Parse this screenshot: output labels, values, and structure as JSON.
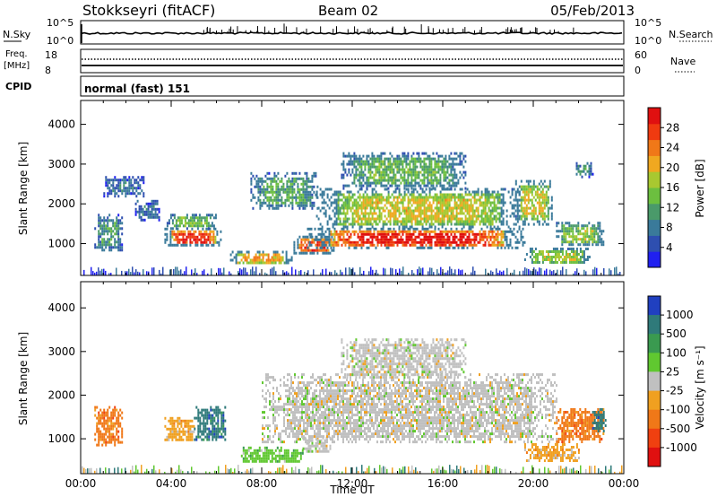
{
  "header": {
    "station": "Stokkseyri (fitACF)",
    "beam": "Beam 02",
    "date": "05/Feb/2013"
  },
  "noise_panel": {
    "left_label": "N.Sky",
    "left_ticks": [
      "10^5",
      "10^0"
    ],
    "right_ticks": [
      "10^5",
      "10^0"
    ],
    "right_label": "N.Search"
  },
  "freq_panel": {
    "left_label_1": "Freq.",
    "left_label_2": "[MHz]",
    "left_ticks": [
      "18",
      "8"
    ],
    "right_ticks": [
      "60",
      "0"
    ],
    "right_label": "Nave"
  },
  "cpid_panel": {
    "label": "CPID",
    "text": "normal (fast) 151"
  },
  "chart_data": [
    {
      "type": "heatmap",
      "quantity": "power",
      "ylabel": "Slant Range [km]",
      "y_ticks": [
        "4000",
        "3000",
        "2000",
        "1000"
      ],
      "ylim": [
        200,
        4600
      ],
      "x_hours": [
        0,
        24
      ],
      "colorbar": {
        "label": "Power [dB]",
        "ticks": [
          "28",
          "24",
          "20",
          "16",
          "12",
          "8",
          "4"
        ],
        "range": [
          0,
          32
        ],
        "colors": [
          "#2020f0",
          "#2e4fb0",
          "#3a7a9a",
          "#4a9a6a",
          "#6cbf3f",
          "#a8c830",
          "#f0a820",
          "#f07818",
          "#f03a10",
          "#e01010"
        ]
      },
      "regions": [
        {
          "t0": 0.6,
          "t1": 1.8,
          "r0": 850,
          "r1": 1750,
          "level": 0.3
        },
        {
          "t0": 1.0,
          "t1": 2.8,
          "r0": 2200,
          "r1": 2700,
          "level": 0.2
        },
        {
          "t0": 2.4,
          "t1": 3.5,
          "r0": 1600,
          "r1": 2100,
          "level": 0.2
        },
        {
          "t0": 3.7,
          "t1": 6.2,
          "r0": 950,
          "r1": 1400,
          "level": 0.95
        },
        {
          "t0": 3.8,
          "t1": 6.0,
          "r0": 1400,
          "r1": 1750,
          "level": 0.45
        },
        {
          "t0": 6.6,
          "t1": 9.3,
          "r0": 500,
          "r1": 820,
          "level": 0.7
        },
        {
          "t0": 7.5,
          "t1": 10.5,
          "r0": 1900,
          "r1": 2800,
          "level": 0.35
        },
        {
          "t0": 9.4,
          "t1": 11.2,
          "r0": 750,
          "r1": 1200,
          "level": 0.9
        },
        {
          "t0": 10.0,
          "t1": 19.6,
          "r0": 900,
          "r1": 1400,
          "level": 1.0
        },
        {
          "t0": 10.4,
          "t1": 19.4,
          "r0": 1400,
          "r1": 2400,
          "level": 0.6
        },
        {
          "t0": 11.5,
          "t1": 17.0,
          "r0": 2400,
          "r1": 3300,
          "level": 0.4
        },
        {
          "t0": 19.2,
          "t1": 20.8,
          "r0": 1500,
          "r1": 2600,
          "level": 0.6
        },
        {
          "t0": 19.6,
          "t1": 22.5,
          "r0": 500,
          "r1": 900,
          "level": 0.55
        },
        {
          "t0": 21.0,
          "t1": 23.1,
          "r0": 950,
          "r1": 1550,
          "level": 0.5
        },
        {
          "t0": 21.8,
          "t1": 22.6,
          "r0": 2700,
          "r1": 3050,
          "level": 0.3
        }
      ]
    },
    {
      "type": "heatmap",
      "quantity": "velocity",
      "xlabel": "Time UT",
      "ylabel": "Slant Range [km]",
      "y_ticks": [
        "4000",
        "3000",
        "2000",
        "1000"
      ],
      "x_ticks": [
        "00:00",
        "04:00",
        "08:00",
        "12:00",
        "16:00",
        "20:00",
        "00:00"
      ],
      "ylim": [
        200,
        4600
      ],
      "x_hours": [
        0,
        24
      ],
      "colorbar": {
        "label": "Velocity [m s⁻¹]",
        "ticks": [
          "1000",
          "500",
          "100",
          "25",
          "-25",
          "-100",
          "-500",
          "-1000"
        ],
        "colors": [
          "#2040c0",
          "#2f7a7a",
          "#3a9a50",
          "#60c830",
          "#c0c0c0",
          "#f0a020",
          "#f07818",
          "#f04010",
          "#e01010"
        ]
      },
      "regions": [
        {
          "t0": 0.6,
          "t1": 1.8,
          "r0": 850,
          "r1": 1750,
          "color": 6
        },
        {
          "t0": 3.7,
          "t1": 5.0,
          "r0": 950,
          "r1": 1500,
          "color": 5
        },
        {
          "t0": 5.0,
          "t1": 6.4,
          "r0": 1000,
          "r1": 1750,
          "color": 1
        },
        {
          "t0": 7.0,
          "t1": 9.8,
          "r0": 450,
          "r1": 820,
          "color": 3
        },
        {
          "t0": 9.8,
          "t1": 11.0,
          "r0": 700,
          "r1": 1050,
          "color": 4
        },
        {
          "t0": 8.0,
          "t1": 21.0,
          "r0": 900,
          "r1": 2500,
          "color": 4
        },
        {
          "t0": 11.5,
          "t1": 17.0,
          "r0": 2400,
          "r1": 3300,
          "color": 4
        },
        {
          "t0": 19.6,
          "t1": 22.0,
          "r0": 500,
          "r1": 900,
          "color": 5
        },
        {
          "t0": 21.0,
          "t1": 23.1,
          "r0": 950,
          "r1": 1700,
          "color": 6
        },
        {
          "t0": 22.6,
          "t1": 23.2,
          "r0": 1200,
          "r1": 1700,
          "color": 1
        }
      ]
    }
  ]
}
